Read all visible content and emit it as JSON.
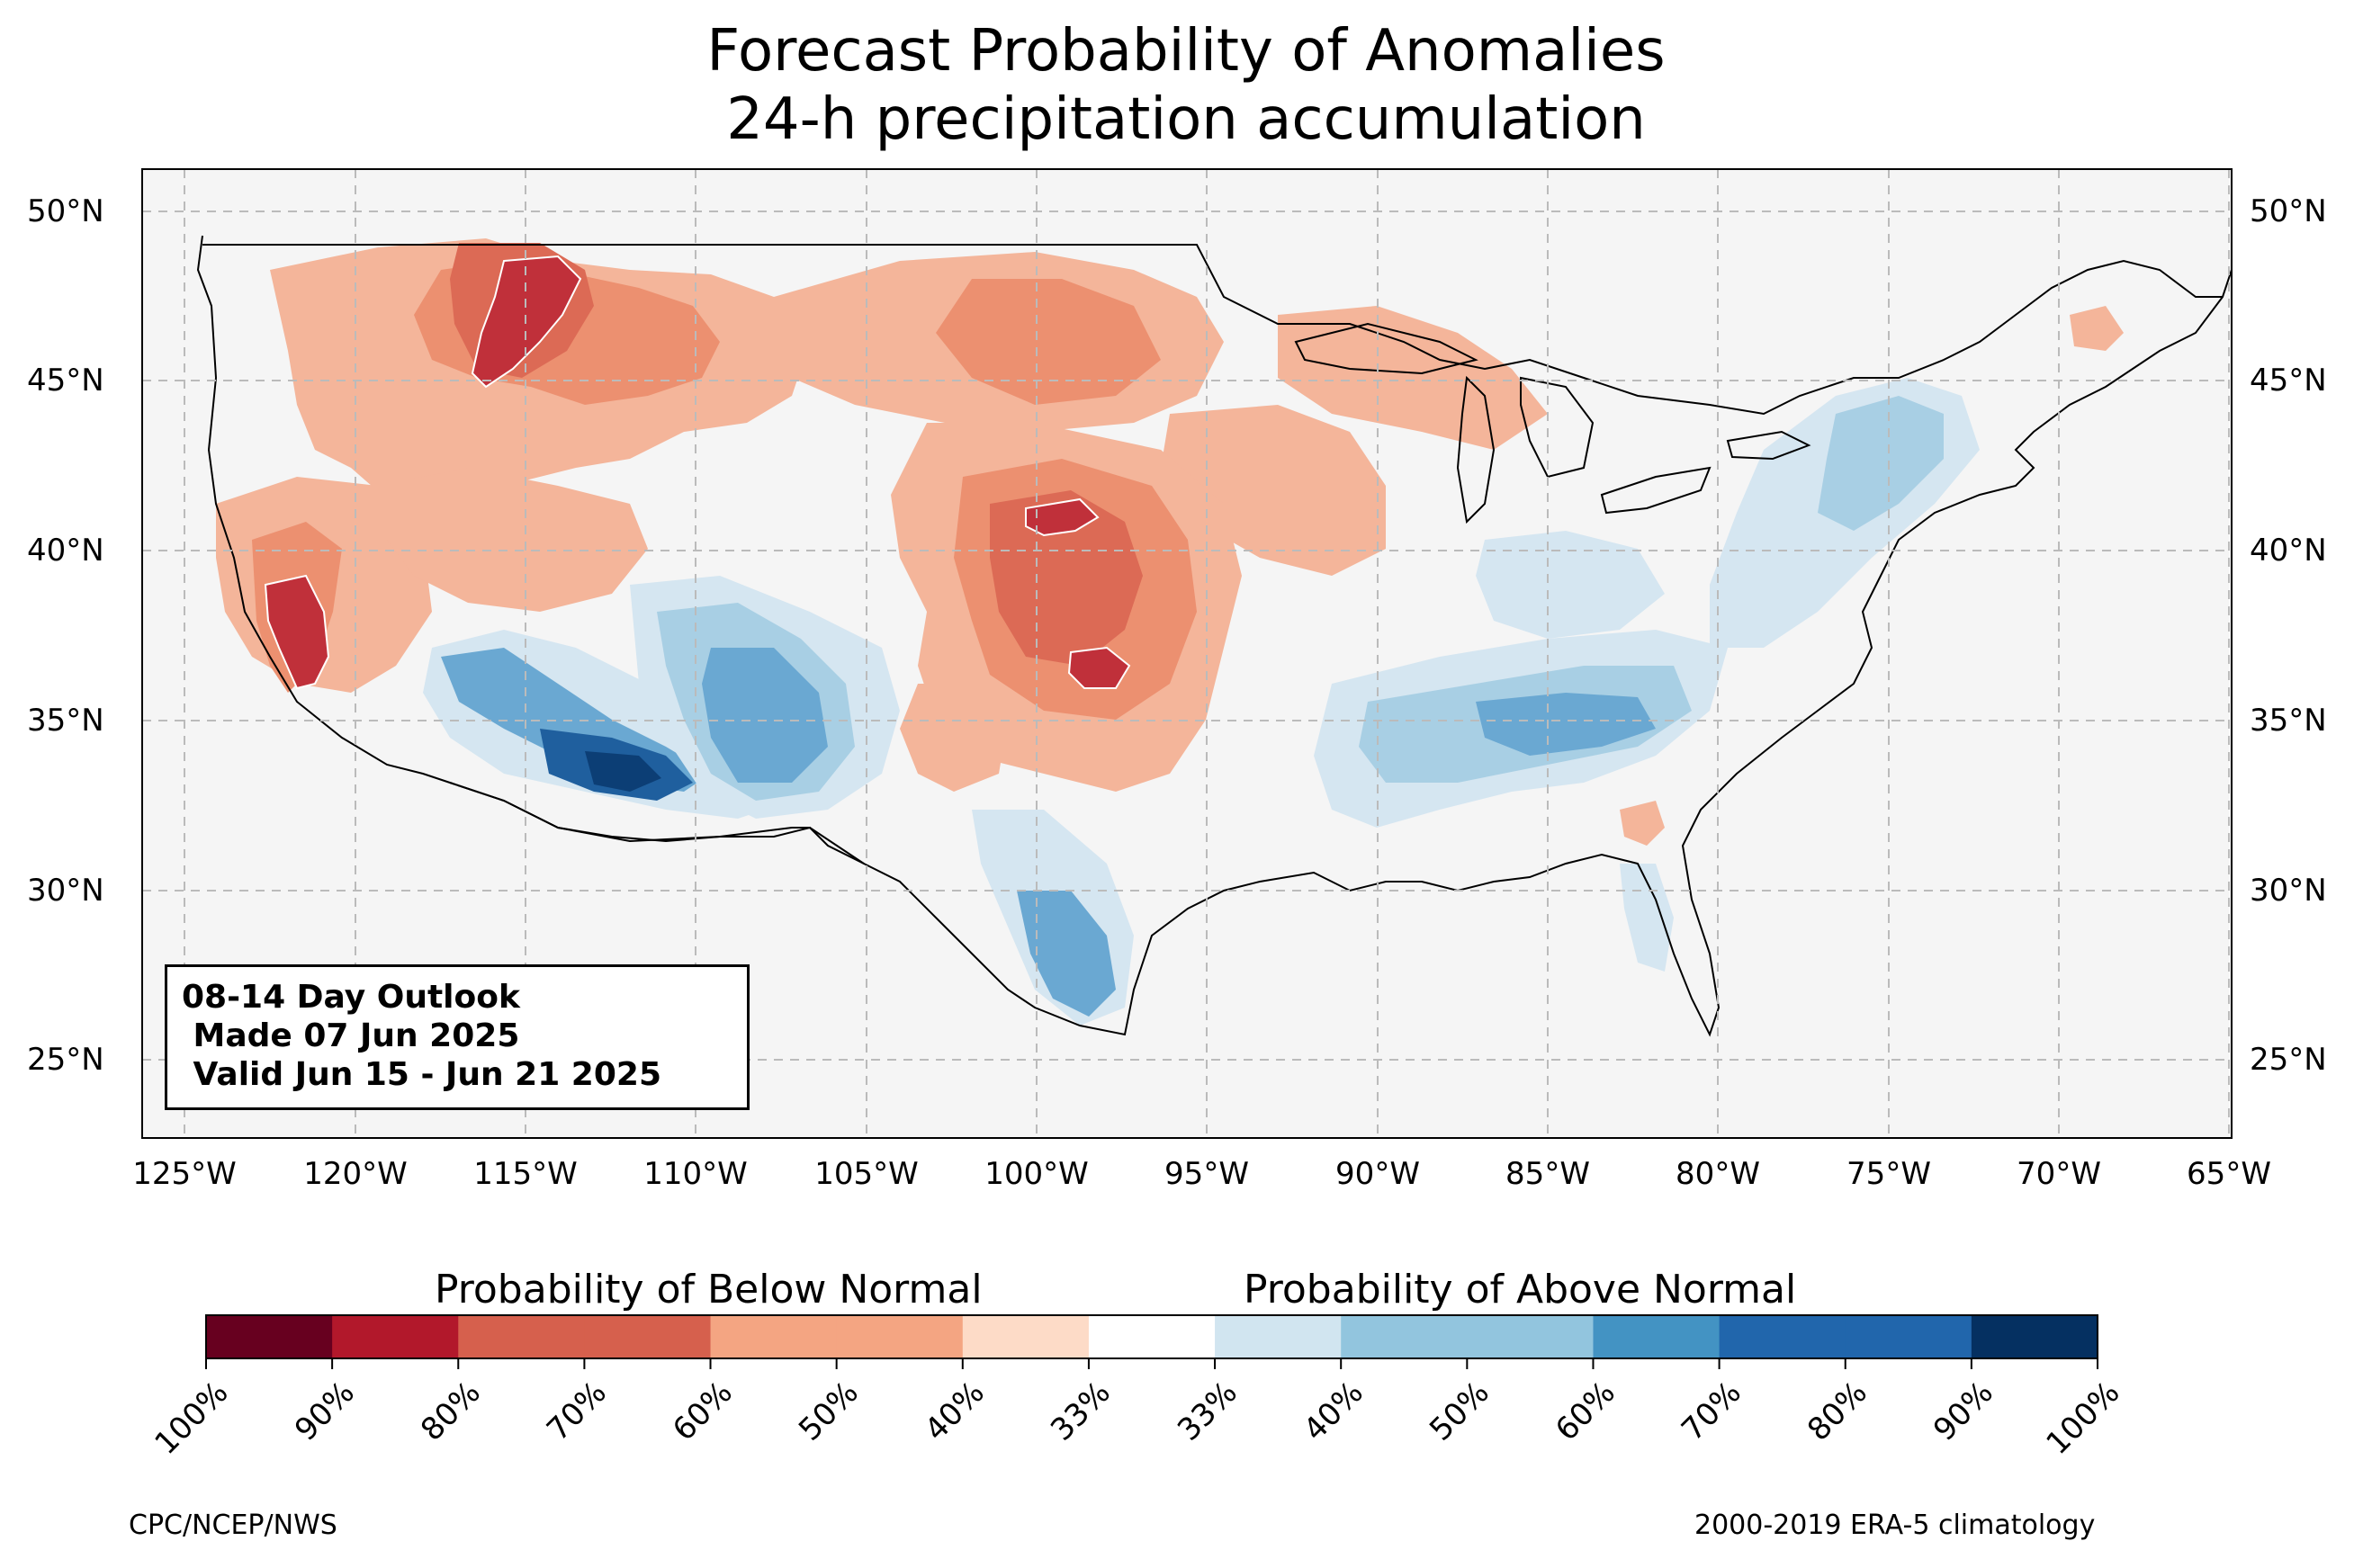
{
  "title": {
    "line1": "Forecast Probability of Anomalies",
    "line2": "24-h precipitation accumulation"
  },
  "axes": {
    "lat_labels": [
      "50°N",
      "45°N",
      "40°N",
      "35°N",
      "30°N",
      "25°N"
    ],
    "lon_labels": [
      "125°W",
      "120°W",
      "115°W",
      "110°W",
      "105°W",
      "100°W",
      "95°W",
      "90°W",
      "85°W",
      "80°W",
      "75°W",
      "70°W",
      "65°W"
    ],
    "lat_range": [
      22.8,
      51.3
    ],
    "lon_range": [
      -126.2,
      -64.9
    ],
    "grid": "dashed"
  },
  "info_box": {
    "line1": "08-14 Day Outlook",
    "line2": " Made 07 Jun 2025",
    "line3": " Valid Jun 15 - Jun 21 2025"
  },
  "legend": {
    "below_heading": "Probability of Below Normal",
    "above_heading": "Probability of Above Normal",
    "tick_labels": [
      "100%",
      "90%",
      "80%",
      "70%",
      "60%",
      "50%",
      "40%",
      "33%",
      "33%",
      "40%",
      "50%",
      "60%",
      "70%",
      "80%",
      "90%",
      "100%"
    ],
    "colors": [
      "#67001f",
      "#b2182b",
      "#d6604d",
      "#d6604d",
      "#f4a582",
      "#f4a582",
      "#fddbc7",
      "#ffffff",
      "#d1e5f0",
      "#92c5de",
      "#92c5de",
      "#4393c3",
      "#2166ac",
      "#2166ac",
      "#053061"
    ]
  },
  "colors": {
    "land": "#f5f5f5",
    "below_33_40": "#fddbc7",
    "below_40_50": "#f4b59a",
    "below_50_60": "#ec9070",
    "below_60_70": "#dc6a55",
    "below_70_80": "#c0303a",
    "above_33_40": "#d5e6f1",
    "above_40_50": "#a8cfe4",
    "above_50_60": "#6aa8d2",
    "above_60_70": "#3b84bd",
    "above_70_80": "#1f5f9e",
    "above_80_90": "#0c3e75"
  },
  "footer": {
    "left": "CPC/NCEP/NWS",
    "right": "2000-2019 ERA-5 climatology"
  }
}
